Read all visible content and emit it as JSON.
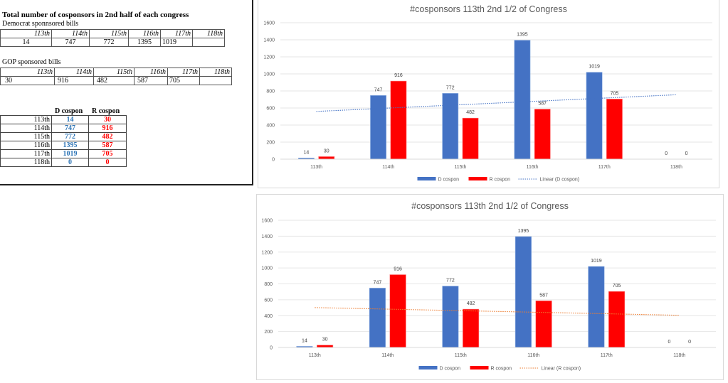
{
  "sheet": {
    "title": "Total number of cosponsors in 2nd half of each congress",
    "dem_table": {
      "label": "Democrat sponnsored bills",
      "headers": [
        "113th",
        "114th",
        "115th",
        "116th",
        "117th",
        "118th"
      ],
      "values": [
        "14",
        "747",
        "772",
        "1395",
        "1019",
        ""
      ]
    },
    "gop_table": {
      "label": "GOP sponsored bills",
      "headers": [
        "113th",
        "114th",
        "115th",
        "116th",
        "117th",
        "118th"
      ],
      "values": [
        "30",
        "916",
        "482",
        "587",
        "705",
        ""
      ]
    },
    "summary_table": {
      "col_d": "D cospon",
      "col_r": "R cospon",
      "rows": [
        {
          "label": "113th",
          "d": "14",
          "r": "30"
        },
        {
          "label": "114th",
          "d": "747",
          "r": "916"
        },
        {
          "label": "115th",
          "d": "772",
          "r": "482"
        },
        {
          "label": "116th",
          "d": "1395",
          "r": "587"
        },
        {
          "label": "117th",
          "d": "1019",
          "r": "705"
        },
        {
          "label": "118th",
          "d": "0",
          "r": "0"
        }
      ]
    }
  },
  "colors": {
    "d": "#4472c4",
    "r": "#ff0000",
    "d_text": "#2e75b6",
    "r_text": "#ff0000",
    "trend_d": "#4472c4",
    "trend_r": "#ed7d31",
    "grid": "#e6e6e6",
    "axis_text": "#595959"
  },
  "chart_data": [
    {
      "type": "bar",
      "title": "#cosponsors 113th 2nd 1/2 of Congress",
      "categories": [
        "113th",
        "114th",
        "115th",
        "116th",
        "117th",
        "118th"
      ],
      "series": [
        {
          "name": "D cospon",
          "values": [
            14,
            747,
            772,
            1395,
            1019,
            0
          ]
        },
        {
          "name": "R cospon",
          "values": [
            30,
            916,
            482,
            587,
            705,
            0
          ]
        }
      ],
      "trendline": {
        "name": "Linear (D cospon)",
        "of": "D cospon"
      },
      "ylim": [
        0,
        1600
      ],
      "yticks": [
        0,
        200,
        400,
        600,
        800,
        1000,
        1200,
        1400,
        1600
      ],
      "grid": true,
      "legend": "bottom",
      "xlabel": "",
      "ylabel": ""
    },
    {
      "type": "bar",
      "title": "#cosponsors 113th 2nd 1/2 of Congress",
      "categories": [
        "113th",
        "114th",
        "115th",
        "116th",
        "117th",
        "118th"
      ],
      "series": [
        {
          "name": "D cospon",
          "values": [
            14,
            747,
            772,
            1395,
            1019,
            0
          ]
        },
        {
          "name": "R cospon",
          "values": [
            30,
            916,
            482,
            587,
            705,
            0
          ]
        }
      ],
      "trendline": {
        "name": "Linear (R cospon)",
        "of": "R cospon"
      },
      "ylim": [
        0,
        1600
      ],
      "yticks": [
        0,
        200,
        400,
        600,
        800,
        1000,
        1200,
        1400,
        1600
      ],
      "grid": true,
      "legend": "bottom",
      "xlabel": "",
      "ylabel": ""
    }
  ]
}
